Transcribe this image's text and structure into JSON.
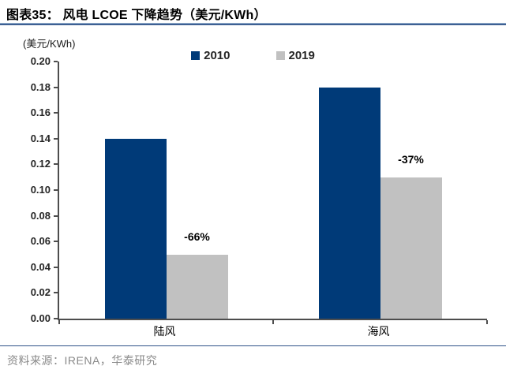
{
  "header": {
    "title": "图表35： 风电 LCOE 下降趋势（美元/KWh）"
  },
  "chart_data": {
    "type": "bar",
    "title": "风电 LCOE 下降趋势（美元/KWh）",
    "unit_label": "(美元/KWh)",
    "categories": [
      "陆风",
      "海风"
    ],
    "series": [
      {
        "name": "2010",
        "color": "#003a78",
        "values": [
          0.14,
          0.18
        ]
      },
      {
        "name": "2019",
        "color": "#c1c1c1",
        "values": [
          0.05,
          0.11
        ]
      }
    ],
    "annotations": [
      {
        "text": "-66%",
        "category": "陆风",
        "above_series": "2019"
      },
      {
        "text": "-37%",
        "category": "海风",
        "above_series": "2019"
      }
    ],
    "ylim": [
      0.0,
      0.2
    ],
    "ytick_step": 0.02,
    "ytick_labels": [
      "0.00",
      "0.02",
      "0.04",
      "0.06",
      "0.08",
      "0.10",
      "0.12",
      "0.14",
      "0.16",
      "0.18",
      "0.20"
    ],
    "grid": false,
    "legend_position": "top-center",
    "colors": {
      "axis": "#4d4d4d",
      "title_rule": "#2f5288",
      "footer_rule": "#2f5288",
      "annotation_text": "#000000",
      "source_text": "#8a8a8a"
    }
  },
  "footer": {
    "source": "资料来源：IRENA，华泰研究"
  }
}
